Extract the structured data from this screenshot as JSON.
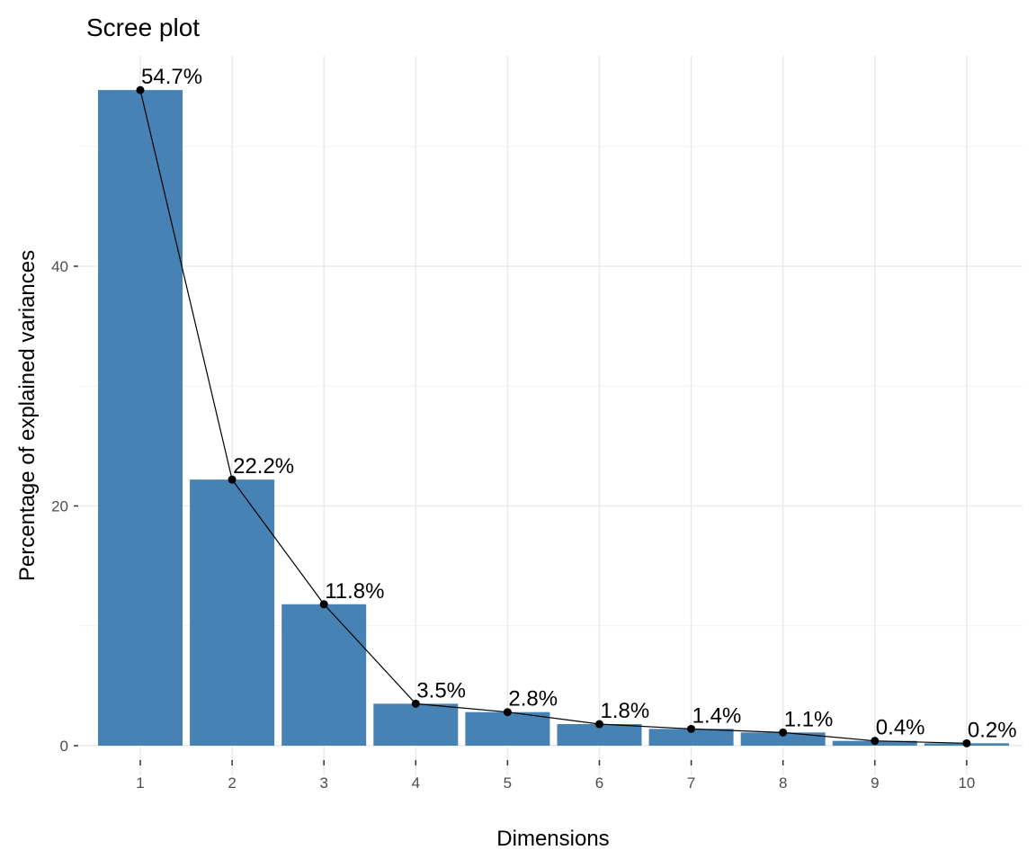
{
  "chart_data": {
    "type": "bar",
    "title": "Scree plot",
    "xlabel": "Dimensions",
    "ylabel": "Percentage of explained variances",
    "categories": [
      "1",
      "2",
      "3",
      "4",
      "5",
      "6",
      "7",
      "8",
      "9",
      "10"
    ],
    "values": [
      54.7,
      22.2,
      11.8,
      3.5,
      2.8,
      1.8,
      1.4,
      1.1,
      0.4,
      0.2
    ],
    "data_labels": [
      "54.7%",
      "22.2%",
      "11.8%",
      "3.5%",
      "2.8%",
      "1.8%",
      "1.4%",
      "1.1%",
      "0.4%",
      "0.2%"
    ],
    "line_overlay": true,
    "yticks": [
      0,
      20,
      40
    ],
    "ytick_labels": [
      "0",
      "20",
      "40"
    ],
    "ylim": [
      0,
      57
    ],
    "grid": true,
    "colors": {
      "bar": "#4682B4",
      "line": "#000000",
      "grid": "#ebebeb"
    }
  }
}
